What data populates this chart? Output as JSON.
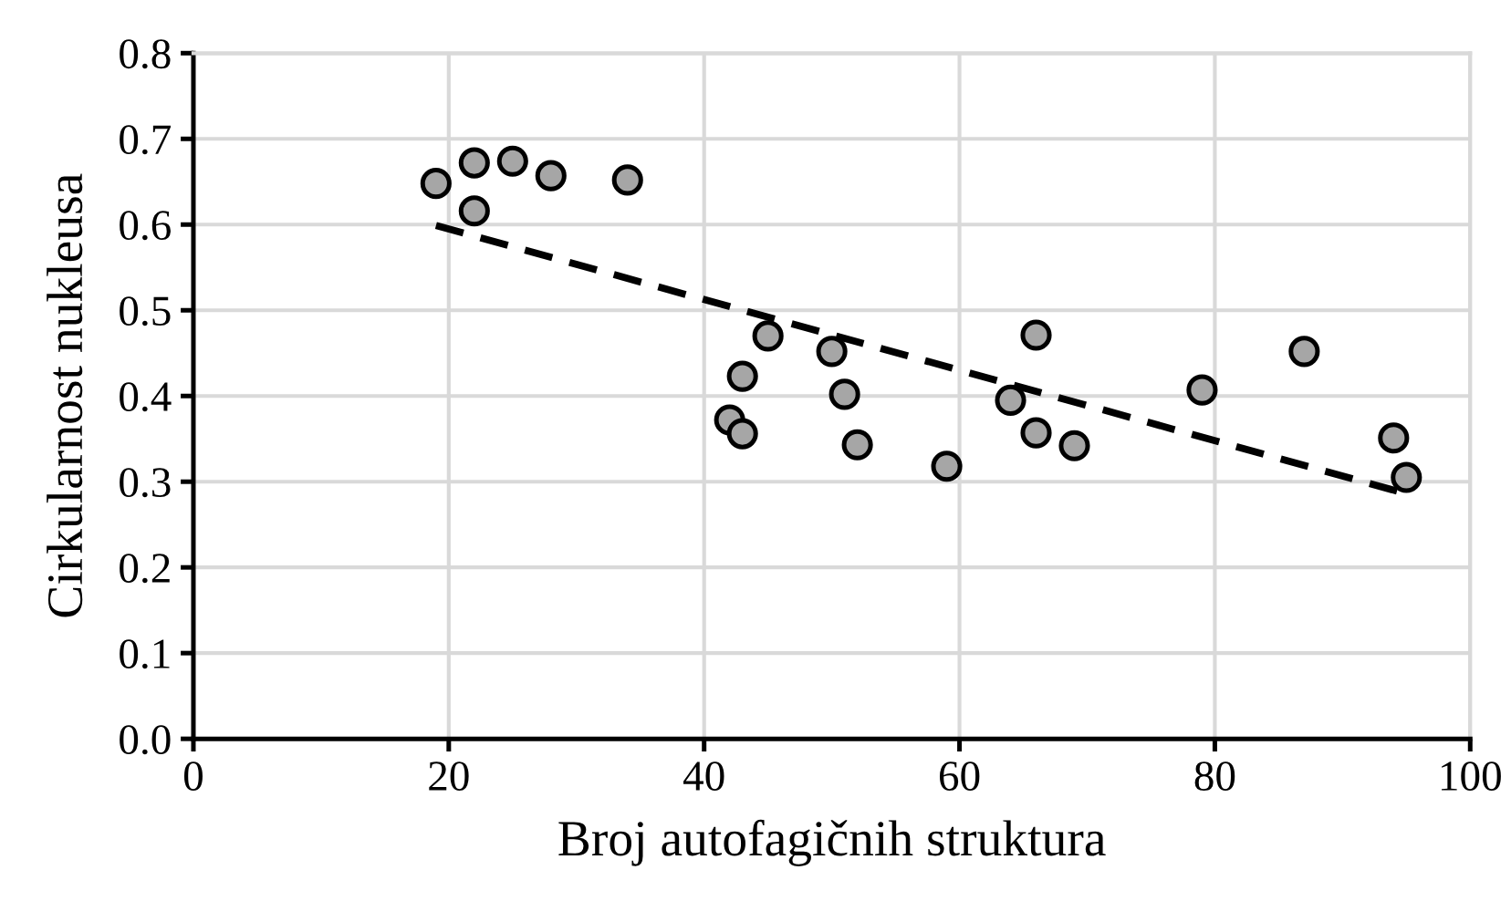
{
  "chart_data": {
    "type": "scatter",
    "xlabel": "Broj autofagičnih struktura",
    "ylabel": "Cirkularnost nukleusa",
    "xlim": [
      0,
      100
    ],
    "xticks": [
      0,
      20,
      40,
      60,
      80,
      100
    ],
    "ylim": [
      0,
      0.8
    ],
    "yticks": [
      {
        "value": 0,
        "label": "0.0"
      },
      0.1,
      0.2,
      0.3,
      0.4,
      0.5,
      0.6,
      0.7,
      0.8
    ],
    "grid": true,
    "marker": "circle",
    "series": [
      {
        "color": "#a6a6a6",
        "x": [
          19,
          22,
          22,
          25,
          28,
          34,
          42,
          43,
          43,
          45,
          50,
          51,
          52,
          59,
          64,
          66,
          66,
          69,
          79,
          87,
          94,
          95
        ],
        "values": [
          0.648,
          0.672,
          0.616,
          0.674,
          0.657,
          0.652,
          0.372,
          0.423,
          0.356,
          0.47,
          0.452,
          0.402,
          0.343,
          0.318,
          0.395,
          0.471,
          0.357,
          0.342,
          0.407,
          0.452,
          0.351,
          0.305
        ]
      },
      {
        "type": "line",
        "color": "#000000",
        "line_style": "dashed",
        "marker": "none",
        "x": [
          19,
          95
        ],
        "values": [
          0.599,
          0.286
        ]
      }
    ]
  }
}
